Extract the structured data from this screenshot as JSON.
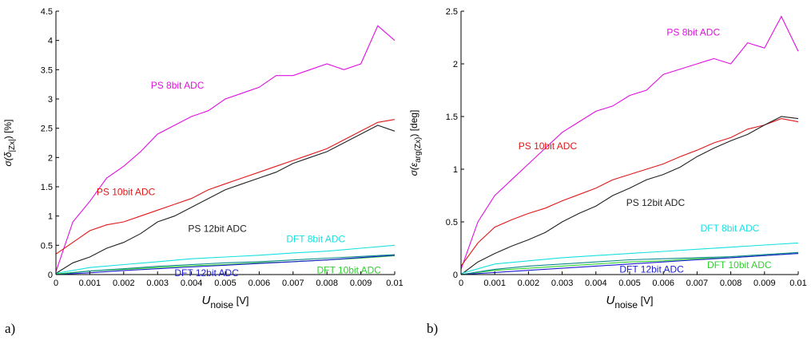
{
  "panels": [
    {
      "label": "a)",
      "chart_data": {
        "type": "line",
        "xlabel": {
          "main": "U",
          "sub": "noise",
          "unit": " [V]"
        },
        "ylabel": {
          "prefix": "σ(",
          "symbol": "δ",
          "sub": "|Zx|",
          "suffix": ") [%]"
        },
        "xlim": [
          0,
          0.01
        ],
        "ylim": [
          0,
          4.5
        ],
        "xticks": [
          0,
          0.001,
          0.002,
          0.003,
          0.004,
          0.005,
          0.006,
          0.007,
          0.008,
          0.009,
          0.01
        ],
        "xtick_labels": [
          "0",
          "0.001",
          "0.002",
          "0.003",
          "0.004",
          "0.005",
          "0.006",
          "0.007",
          "0.008",
          "0.009",
          "0.01"
        ],
        "yticks": [
          0,
          0.5,
          1,
          1.5,
          2,
          2.5,
          3,
          3.5,
          4,
          4.5
        ],
        "ytick_labels": [
          "0",
          "0.5",
          "1",
          "1.5",
          "2",
          "2.5",
          "3",
          "3.5",
          "4",
          "4.5"
        ],
        "grid": false,
        "series": [
          {
            "name": "PS 8bit ADC",
            "color": "#e010e0",
            "x": [
              0,
              0.0005,
              0.001,
              0.0015,
              0.002,
              0.0025,
              0.003,
              0.0035,
              0.004,
              0.0045,
              0.005,
              0.0055,
              0.006,
              0.0065,
              0.007,
              0.0075,
              0.008,
              0.0085,
              0.009,
              0.0095,
              0.01
            ],
            "y": [
              0.05,
              0.9,
              1.25,
              1.65,
              1.85,
              2.1,
              2.4,
              2.55,
              2.7,
              2.8,
              3.0,
              3.1,
              3.2,
              3.4,
              3.4,
              3.5,
              3.6,
              3.5,
              3.6,
              4.25,
              4.0
            ]
          },
          {
            "name": "PS 10bit ADC",
            "color": "#e01818",
            "x": [
              0,
              0.0005,
              0.001,
              0.0015,
              0.002,
              0.0025,
              0.003,
              0.0035,
              0.004,
              0.0045,
              0.005,
              0.0055,
              0.006,
              0.0065,
              0.007,
              0.0075,
              0.008,
              0.0085,
              0.009,
              0.0095,
              0.01
            ],
            "y": [
              0.35,
              0.55,
              0.75,
              0.85,
              0.9,
              1.0,
              1.1,
              1.2,
              1.3,
              1.45,
              1.55,
              1.65,
              1.75,
              1.85,
              1.95,
              2.05,
              2.15,
              2.3,
              2.45,
              2.6,
              2.65
            ]
          },
          {
            "name": "PS 12bit ADC",
            "color": "#222222",
            "x": [
              0,
              0.0005,
              0.001,
              0.0015,
              0.002,
              0.0025,
              0.003,
              0.0035,
              0.004,
              0.0045,
              0.005,
              0.0055,
              0.006,
              0.0065,
              0.007,
              0.0075,
              0.008,
              0.0085,
              0.009,
              0.0095,
              0.01
            ],
            "y": [
              0.02,
              0.2,
              0.3,
              0.45,
              0.55,
              0.7,
              0.9,
              1.0,
              1.15,
              1.3,
              1.45,
              1.55,
              1.65,
              1.75,
              1.9,
              2.0,
              2.1,
              2.25,
              2.4,
              2.55,
              2.45
            ]
          },
          {
            "name": "DFT 8bit ADC",
            "color": "#18e0e0",
            "x": [
              0,
              0.001,
              0.002,
              0.003,
              0.004,
              0.005,
              0.006,
              0.007,
              0.008,
              0.009,
              0.01
            ],
            "y": [
              0.02,
              0.12,
              0.17,
              0.22,
              0.27,
              0.3,
              0.33,
              0.37,
              0.4,
              0.45,
              0.5
            ]
          },
          {
            "name": "DFT 10bit ADC",
            "color": "#30d030",
            "x": [
              0,
              0.001,
              0.002,
              0.003,
              0.004,
              0.005,
              0.006,
              0.007,
              0.008,
              0.009,
              0.01
            ],
            "y": [
              0.01,
              0.06,
              0.09,
              0.12,
              0.15,
              0.17,
              0.2,
              0.22,
              0.25,
              0.28,
              0.32
            ]
          },
          {
            "name": "DFT 12bit ADC",
            "color": "#1c1cd0",
            "x": [
              0,
              0.001,
              0.002,
              0.003,
              0.004,
              0.005,
              0.006,
              0.007,
              0.008,
              0.009,
              0.01
            ],
            "y": [
              0.0,
              0.03,
              0.07,
              0.1,
              0.13,
              0.16,
              0.19,
              0.22,
              0.25,
              0.29,
              0.33
            ]
          },
          {
            "name": "",
            "color": "#0e8a8a",
            "x": [
              0,
              0.001,
              0.002,
              0.003,
              0.004,
              0.005,
              0.006,
              0.007,
              0.008,
              0.009,
              0.01
            ],
            "y": [
              0.0,
              0.06,
              0.1,
              0.14,
              0.17,
              0.2,
              0.22,
              0.25,
              0.28,
              0.31,
              0.34
            ]
          }
        ],
        "annotations": [
          {
            "text": "PS 8bit ADC",
            "x": 0.0028,
            "y": 3.18,
            "color": "#e010e0"
          },
          {
            "text": "PS 10bit ADC",
            "x": 0.0012,
            "y": 1.36,
            "color": "#e01818"
          },
          {
            "text": "PS 12bit ADC",
            "x": 0.0039,
            "y": 0.73,
            "color": "#222222"
          },
          {
            "text": "DFT 8bit ADC",
            "x": 0.0068,
            "y": 0.55,
            "color": "#18e0e0"
          },
          {
            "text": "DFT 12bit ADC",
            "x": 0.0035,
            "y": -0.03,
            "color": "#1c1cd0"
          },
          {
            "text": "DFT 10bit ADC",
            "x": 0.0077,
            "y": 0.02,
            "color": "#30d030"
          }
        ]
      }
    },
    {
      "label": "b)",
      "chart_data": {
        "type": "line",
        "xlabel": {
          "main": "U",
          "sub": "noise",
          "unit": " [V]"
        },
        "ylabel": {
          "prefix": "σ(",
          "symbol": "ε",
          "sub": "arg(Zx)",
          "suffix": ") [deg]"
        },
        "xlim": [
          0,
          0.01
        ],
        "ylim": [
          0,
          2.5
        ],
        "xticks": [
          0,
          0.001,
          0.002,
          0.003,
          0.004,
          0.005,
          0.006,
          0.007,
          0.008,
          0.009,
          0.01
        ],
        "xtick_labels": [
          "0",
          "0.001",
          "0.002",
          "0.003",
          "0.004",
          "0.005",
          "0.006",
          "0.007",
          "0.008",
          "0.009",
          "0.01"
        ],
        "yticks": [
          0,
          0.5,
          1,
          1.5,
          2,
          2.5
        ],
        "ytick_labels": [
          "0",
          "0.5",
          "1",
          "1.5",
          "2",
          "2.5"
        ],
        "grid": false,
        "series": [
          {
            "name": "PS 8bit ADC",
            "color": "#e010e0",
            "x": [
              0,
              0.0005,
              0.001,
              0.0015,
              0.002,
              0.0025,
              0.003,
              0.0035,
              0.004,
              0.0045,
              0.005,
              0.0055,
              0.006,
              0.0065,
              0.007,
              0.0075,
              0.008,
              0.0085,
              0.009,
              0.0095,
              0.01
            ],
            "y": [
              0.05,
              0.5,
              0.75,
              0.9,
              1.05,
              1.2,
              1.35,
              1.45,
              1.55,
              1.6,
              1.7,
              1.75,
              1.9,
              1.95,
              2.0,
              2.05,
              2.0,
              2.2,
              2.15,
              2.45,
              2.12
            ]
          },
          {
            "name": "PS 10bit ADC",
            "color": "#e01818",
            "x": [
              0,
              0.0005,
              0.001,
              0.0015,
              0.002,
              0.0025,
              0.003,
              0.0035,
              0.004,
              0.0045,
              0.005,
              0.0055,
              0.006,
              0.0065,
              0.007,
              0.0075,
              0.008,
              0.0085,
              0.009,
              0.0095,
              0.01
            ],
            "y": [
              0.08,
              0.3,
              0.45,
              0.52,
              0.58,
              0.63,
              0.7,
              0.76,
              0.82,
              0.9,
              0.95,
              1.0,
              1.05,
              1.12,
              1.18,
              1.25,
              1.3,
              1.38,
              1.42,
              1.48,
              1.45
            ]
          },
          {
            "name": "PS 12bit ADC",
            "color": "#222222",
            "x": [
              0,
              0.0005,
              0.001,
              0.0015,
              0.002,
              0.0025,
              0.003,
              0.0035,
              0.004,
              0.0045,
              0.005,
              0.0055,
              0.006,
              0.0065,
              0.007,
              0.0075,
              0.008,
              0.0085,
              0.009,
              0.0095,
              0.01
            ],
            "y": [
              0.0,
              0.12,
              0.2,
              0.27,
              0.33,
              0.4,
              0.5,
              0.58,
              0.65,
              0.75,
              0.82,
              0.9,
              0.95,
              1.02,
              1.12,
              1.2,
              1.27,
              1.33,
              1.42,
              1.5,
              1.48
            ]
          },
          {
            "name": "DFT 8bit ADC",
            "color": "#18e0e0",
            "x": [
              0,
              0.001,
              0.002,
              0.003,
              0.004,
              0.005,
              0.006,
              0.007,
              0.008,
              0.009,
              0.01
            ],
            "y": [
              0.01,
              0.1,
              0.13,
              0.16,
              0.18,
              0.2,
              0.22,
              0.24,
              0.26,
              0.28,
              0.3
            ]
          },
          {
            "name": "DFT 10bit ADC",
            "color": "#30d030",
            "x": [
              0,
              0.001,
              0.002,
              0.003,
              0.004,
              0.005,
              0.006,
              0.007,
              0.008,
              0.009,
              0.01
            ],
            "y": [
              0.0,
              0.04,
              0.06,
              0.08,
              0.1,
              0.12,
              0.13,
              0.15,
              0.16,
              0.18,
              0.2
            ]
          },
          {
            "name": "DFT 12bit ADC",
            "color": "#1c1cd0",
            "x": [
              0,
              0.001,
              0.002,
              0.003,
              0.004,
              0.005,
              0.006,
              0.007,
              0.008,
              0.009,
              0.01
            ],
            "y": [
              0.0,
              0.02,
              0.04,
              0.06,
              0.08,
              0.1,
              0.12,
              0.14,
              0.16,
              0.18,
              0.2
            ]
          },
          {
            "name": "",
            "color": "#0e8a8a",
            "x": [
              0,
              0.001,
              0.002,
              0.003,
              0.004,
              0.005,
              0.006,
              0.007,
              0.008,
              0.009,
              0.01
            ],
            "y": [
              0.0,
              0.05,
              0.08,
              0.1,
              0.12,
              0.14,
              0.15,
              0.16,
              0.17,
              0.19,
              0.21
            ]
          }
        ],
        "annotations": [
          {
            "text": "PS 8bit ADC",
            "x": 0.0061,
            "y": 2.27,
            "color": "#e010e0"
          },
          {
            "text": "PS 10bit ADC",
            "x": 0.0017,
            "y": 1.19,
            "color": "#e01818"
          },
          {
            "text": "PS 12bit ADC",
            "x": 0.0049,
            "y": 0.65,
            "color": "#222222"
          },
          {
            "text": "DFT 8bit ADC",
            "x": 0.0071,
            "y": 0.41,
            "color": "#18e0e0"
          },
          {
            "text": "DFT 12bit ADC",
            "x": 0.0047,
            "y": 0.02,
            "color": "#1c1cd0"
          },
          {
            "text": "DFT 10bit ADC",
            "x": 0.0073,
            "y": 0.06,
            "color": "#30d030"
          }
        ]
      }
    }
  ]
}
